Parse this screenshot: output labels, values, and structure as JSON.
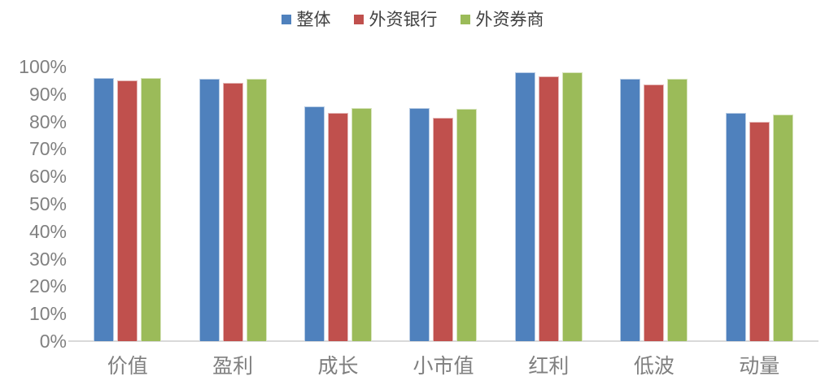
{
  "colors": {
    "background": "#FFFFFF",
    "axis_line": "#D9D9D9",
    "tick_text": "#808080",
    "category_text": "#7F7F7F",
    "legend_text": "#404040"
  },
  "chart_data": {
    "type": "bar",
    "title": "",
    "xlabel": "",
    "ylabel": "",
    "categories": [
      "价值",
      "盈利",
      "成长",
      "小市值",
      "红利",
      "低波",
      "动量"
    ],
    "series": [
      {
        "name": "整体",
        "color": "#4F81BD",
        "border_color": "#B9CDE5",
        "values": [
          96,
          95.5,
          85.5,
          85,
          98,
          95.5,
          83
        ]
      },
      {
        "name": "外资银行",
        "color": "#C0504D",
        "border_color": "#E5B8B7",
        "values": [
          95,
          94,
          83,
          81.5,
          96.5,
          93.5,
          80
        ]
      },
      {
        "name": "外资券商",
        "color": "#9BBB59",
        "border_color": "#D7E4BD",
        "values": [
          96,
          95.5,
          85,
          84.5,
          98,
          95.5,
          82.5
        ]
      }
    ],
    "ylim": [
      0,
      100
    ],
    "ytick_step": 10,
    "yticks": [
      "0%",
      "10%",
      "20%",
      "30%",
      "40%",
      "50%",
      "60%",
      "70%",
      "80%",
      "90%",
      "100%"
    ],
    "ytick_values": [
      0,
      10,
      20,
      30,
      40,
      50,
      60,
      70,
      80,
      90,
      100
    ],
    "grid": false,
    "legend_position": "top"
  }
}
